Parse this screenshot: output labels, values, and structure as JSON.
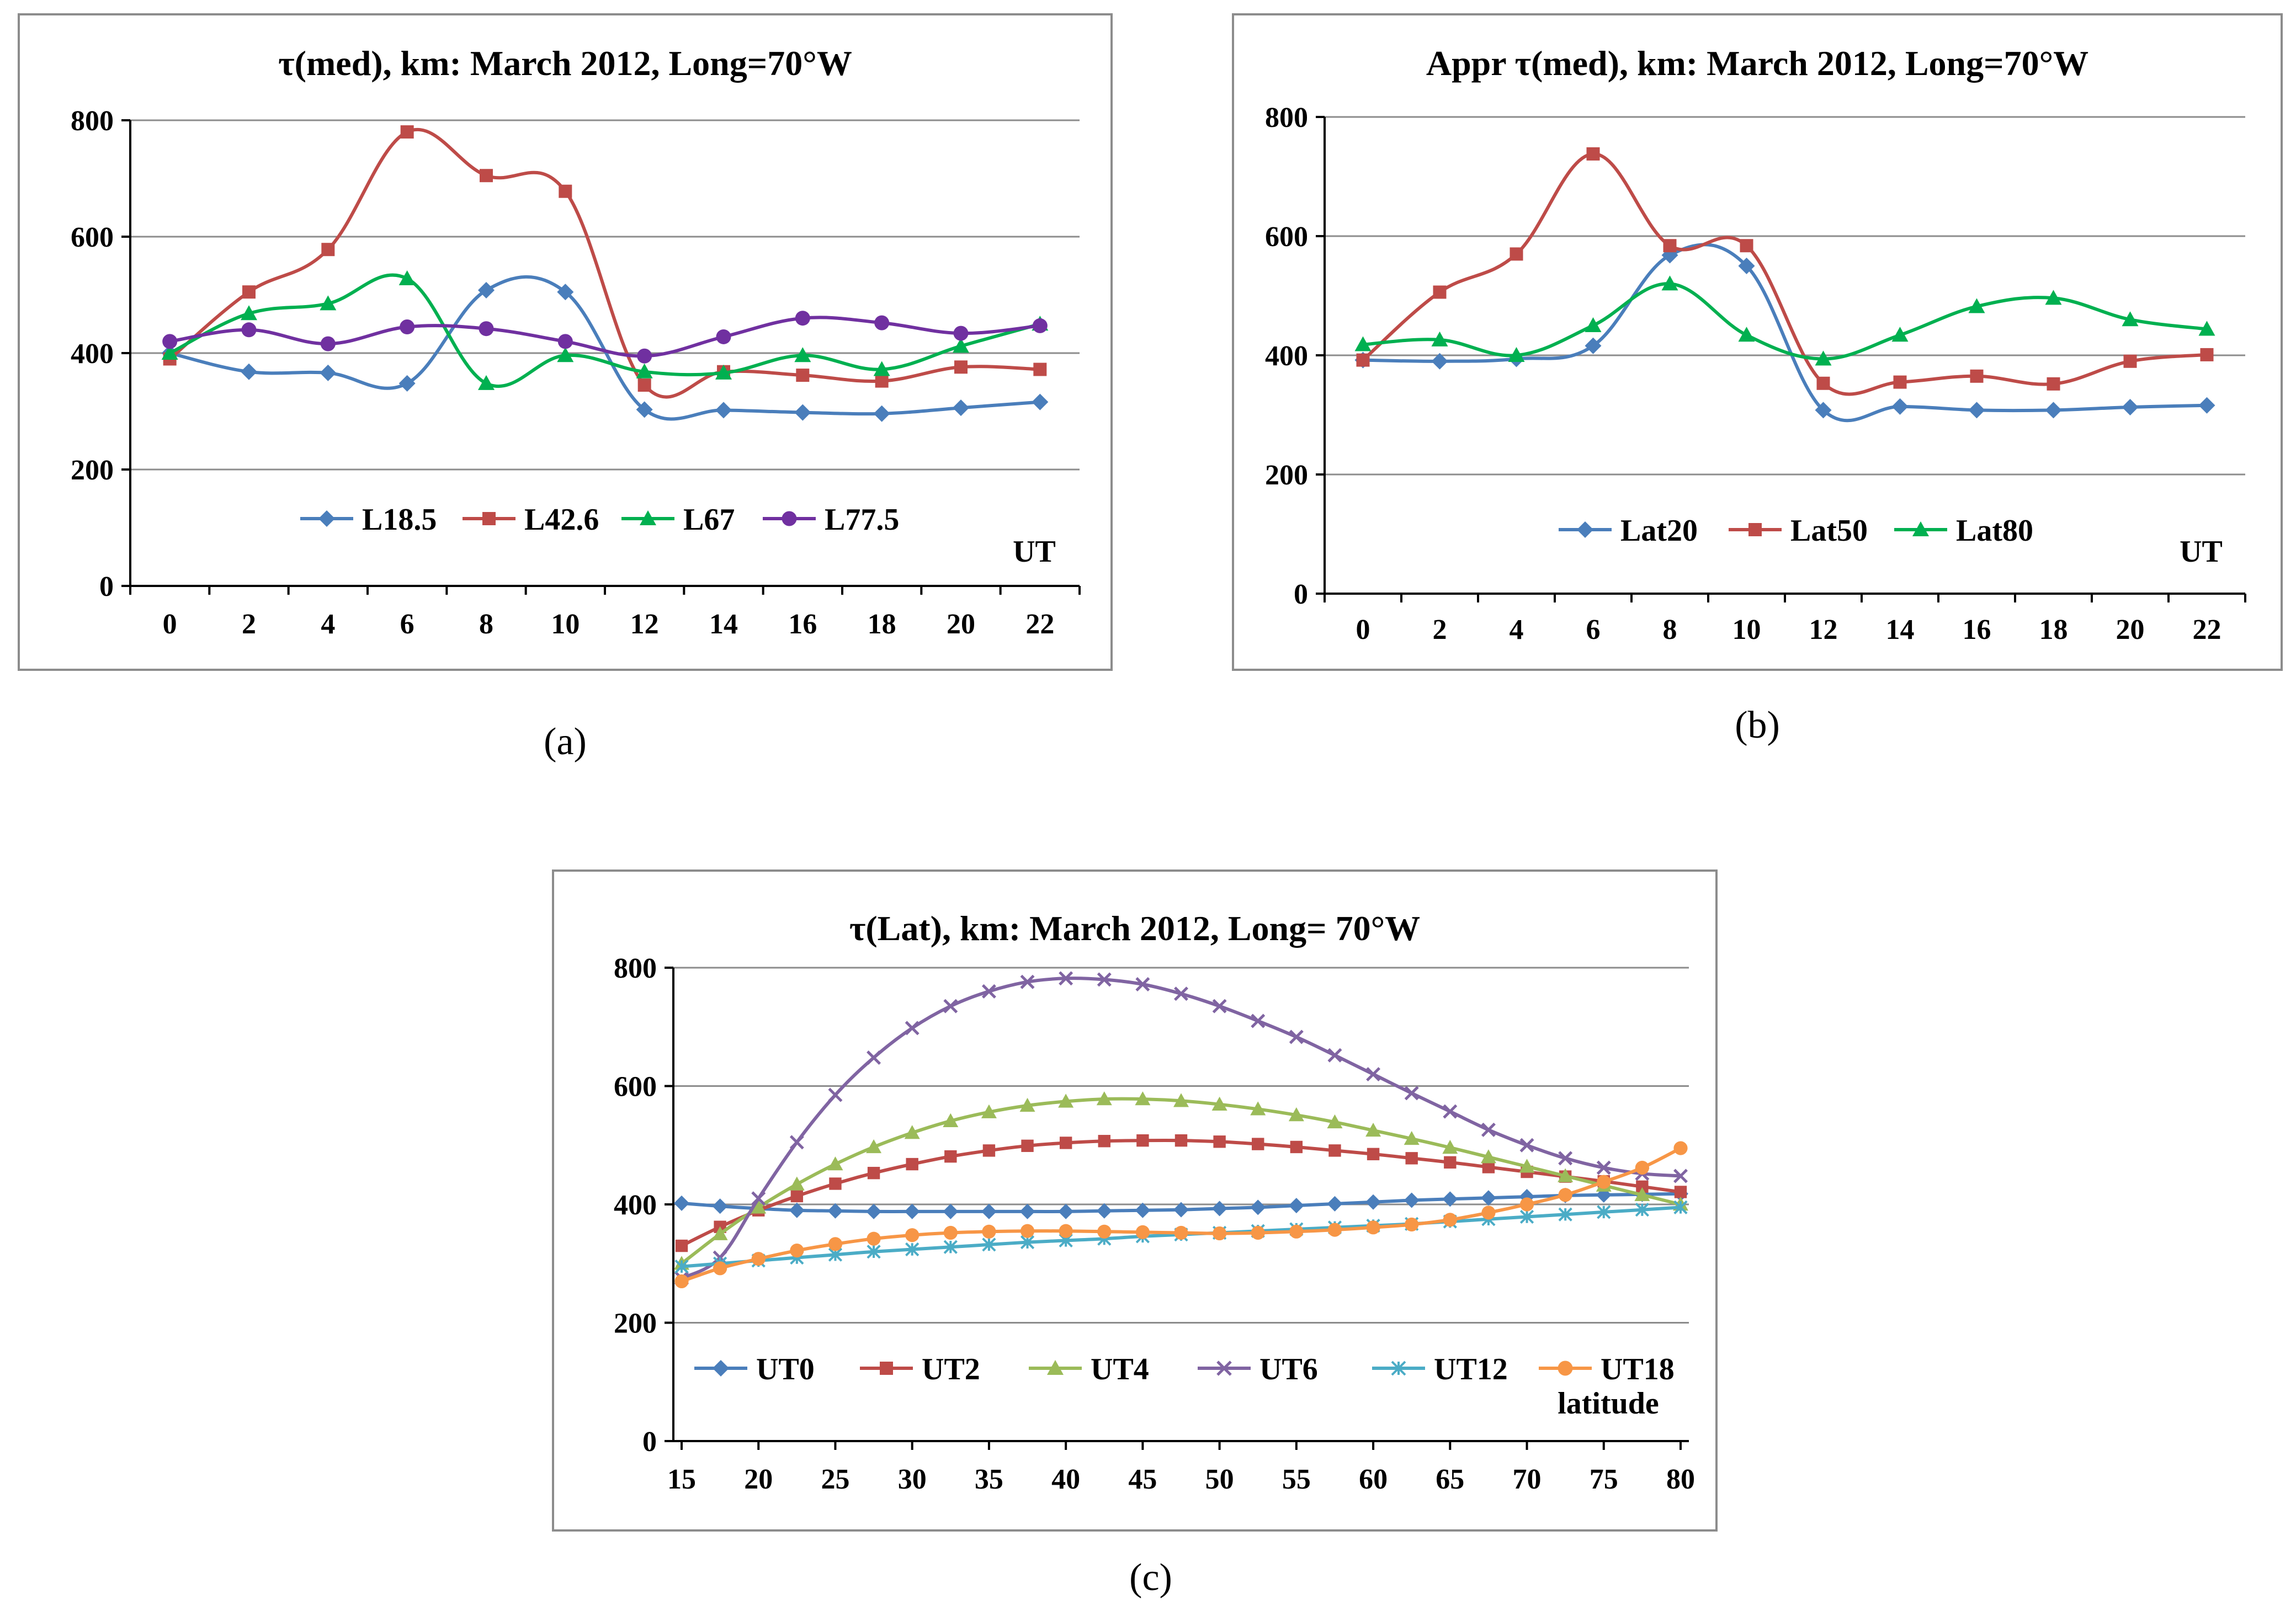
{
  "captions": {
    "a": "(a)",
    "b": "(b)",
    "c": "(c)"
  },
  "chart_data": [
    {
      "id": "a",
      "type": "line",
      "title": "τ(med), km: March 2012, Long=70°W",
      "xlabel": "UT",
      "ylabel": "",
      "x": [
        0,
        2,
        4,
        6,
        8,
        10,
        12,
        14,
        16,
        18,
        20,
        22
      ],
      "xlim": [
        0,
        22
      ],
      "ylim": [
        0,
        800
      ],
      "yticks": [
        0,
        200,
        400,
        600,
        800
      ],
      "grid": true,
      "legend_position": "bottom",
      "series": [
        {
          "name": "L18.5",
          "color": "#4a7ebb",
          "marker": "diamond",
          "values": [
            400,
            368,
            366,
            348,
            508,
            505,
            303,
            302,
            298,
            296,
            306,
            316
          ]
        },
        {
          "name": "L42.6",
          "color": "#be4b48",
          "marker": "square",
          "values": [
            390,
            505,
            578,
            780,
            705,
            678,
            345,
            368,
            362,
            352,
            376,
            372
          ]
        },
        {
          "name": "L67",
          "color": "#00b050",
          "marker": "triangle",
          "values": [
            400,
            468,
            485,
            528,
            348,
            396,
            368,
            366,
            396,
            372,
            412,
            450
          ]
        },
        {
          "name": "L77.5",
          "color": "#7030a0",
          "marker": "circle",
          "values": [
            420,
            440,
            416,
            445,
            442,
            420,
            395,
            428,
            460,
            452,
            434,
            447
          ]
        }
      ]
    },
    {
      "id": "b",
      "type": "line",
      "title": "Appr τ(med), km: March 2012, Long=70°W",
      "xlabel": "UT",
      "ylabel": "",
      "x": [
        0,
        2,
        4,
        6,
        8,
        10,
        12,
        14,
        16,
        18,
        20,
        22
      ],
      "xlim": [
        0,
        22
      ],
      "ylim": [
        0,
        800
      ],
      "yticks": [
        0,
        200,
        400,
        600,
        800
      ],
      "grid": true,
      "legend_position": "bottom",
      "series": [
        {
          "name": "Lat20",
          "color": "#4a7ebb",
          "marker": "diamond",
          "values": [
            392,
            390,
            394,
            416,
            568,
            550,
            308,
            314,
            308,
            308,
            313,
            316
          ]
        },
        {
          "name": "Lat50",
          "color": "#be4b48",
          "marker": "square",
          "values": [
            392,
            506,
            570,
            738,
            584,
            584,
            353,
            355,
            365,
            352,
            390,
            401
          ]
        },
        {
          "name": "Lat80",
          "color": "#00b050",
          "marker": "triangle",
          "values": [
            418,
            426,
            400,
            450,
            520,
            434,
            394,
            434,
            482,
            496,
            460,
            444
          ]
        }
      ]
    },
    {
      "id": "c",
      "type": "line",
      "title": "τ(Lat), km: March 2012, Long= 70°W",
      "xlabel": "latitude",
      "ylabel": "",
      "x": [
        15,
        17.5,
        20,
        22.5,
        25,
        27.5,
        30,
        32.5,
        35,
        37.5,
        40,
        42.5,
        45,
        47.5,
        50,
        52.5,
        55,
        57.5,
        60,
        62.5,
        65,
        67.5,
        70,
        72.5,
        75,
        77.5,
        80
      ],
      "xticks": [
        15,
        20,
        25,
        30,
        35,
        40,
        45,
        50,
        55,
        60,
        65,
        70,
        75,
        80
      ],
      "xlim": [
        15,
        80
      ],
      "ylim": [
        0,
        800
      ],
      "yticks": [
        0,
        200,
        400,
        600,
        800
      ],
      "grid": true,
      "legend_position": "bottom",
      "series": [
        {
          "name": "UT0",
          "color": "#4a7ebb",
          "marker": "diamond",
          "values": [
            402,
            397,
            393,
            390,
            389,
            388,
            388,
            388,
            388,
            388,
            388,
            389,
            390,
            391,
            393,
            395,
            398,
            401,
            404,
            407,
            409,
            411,
            413,
            415,
            416,
            417,
            418
          ]
        },
        {
          "name": "UT2",
          "color": "#be4b48",
          "marker": "square",
          "values": [
            330,
            362,
            390,
            414,
            435,
            453,
            468,
            481,
            491,
            499,
            504,
            507,
            508,
            508,
            506,
            502,
            497,
            491,
            485,
            478,
            471,
            463,
            455,
            447,
            439,
            430,
            421
          ]
        },
        {
          "name": "UT4",
          "color": "#9bbb59",
          "marker": "triangle",
          "values": [
            300,
            350,
            395,
            434,
            468,
            497,
            521,
            541,
            556,
            567,
            574,
            578,
            578,
            575,
            569,
            561,
            551,
            539,
            525,
            511,
            496,
            480,
            464,
            448,
            432,
            416,
            400
          ]
        },
        {
          "name": "UT6",
          "color": "#8064a2",
          "marker": "x",
          "values": [
            275,
            310,
            410,
            505,
            585,
            648,
            698,
            735,
            760,
            776,
            782,
            780,
            772,
            756,
            735,
            710,
            683,
            652,
            620,
            588,
            557,
            526,
            500,
            478,
            462,
            452,
            448
          ]
        },
        {
          "name": "UT12",
          "color": "#4bacc6",
          "marker": "asterisk",
          "values": [
            295,
            300,
            305,
            310,
            315,
            320,
            324,
            328,
            332,
            336,
            339,
            342,
            346,
            349,
            352,
            355,
            358,
            361,
            364,
            367,
            371,
            375,
            379,
            383,
            387,
            391,
            395
          ]
        },
        {
          "name": "UT18",
          "color": "#f79646",
          "marker": "circle",
          "values": [
            270,
            292,
            308,
            322,
            333,
            342,
            348,
            352,
            354,
            355,
            355,
            354,
            353,
            352,
            351,
            352,
            354,
            357,
            361,
            366,
            374,
            386,
            400,
            416,
            438,
            462,
            495
          ]
        }
      ]
    }
  ]
}
